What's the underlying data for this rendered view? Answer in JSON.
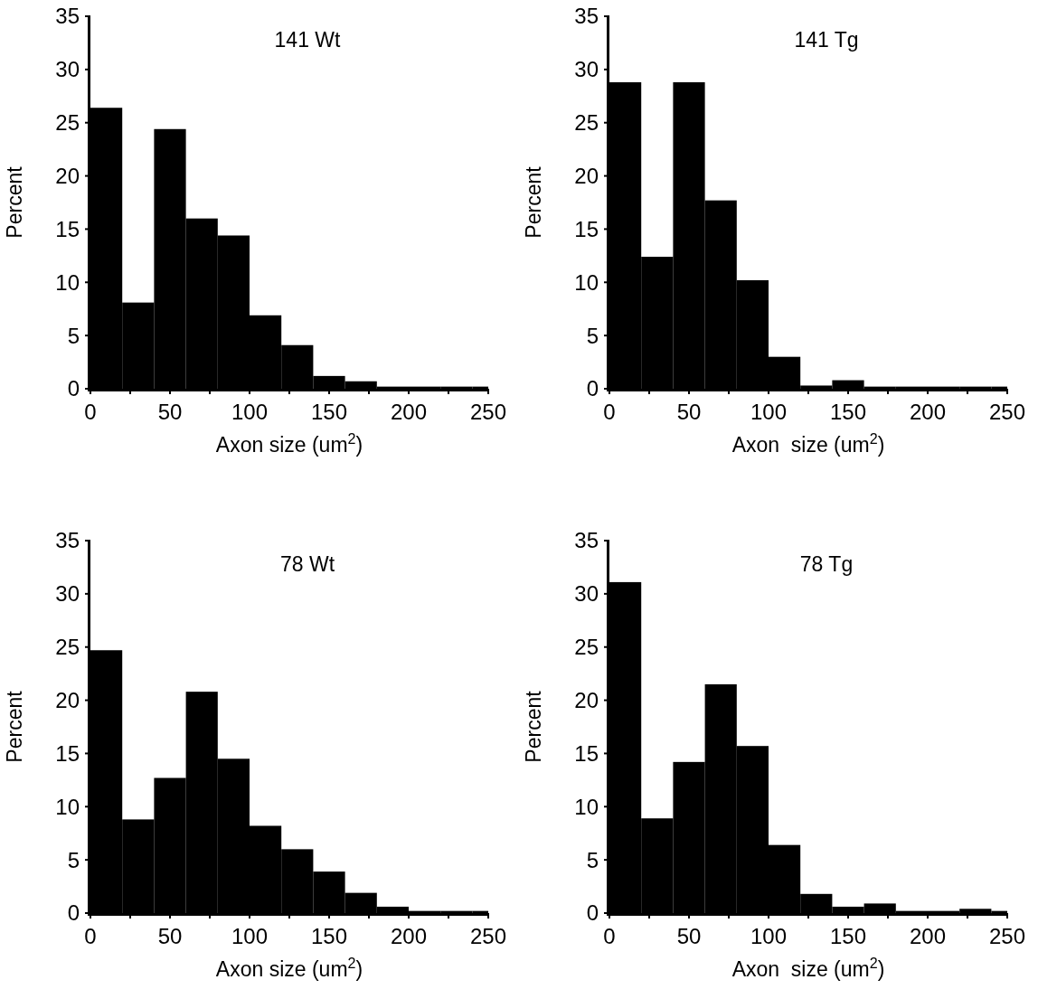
{
  "chart_data": [
    {
      "type": "histogram",
      "title": "141 Wt",
      "xlabel": "Axon size (um$^{2}$)",
      "ylabel": "Percent",
      "color": "#000000",
      "bins": [
        0,
        20,
        40,
        60,
        80,
        100,
        120,
        140,
        160,
        180,
        200,
        220,
        240,
        250
      ],
      "values": [
        26.4,
        8.1,
        24.4,
        16,
        14.4,
        6.9,
        4.1,
        1.2,
        0.7,
        0.2,
        0.2,
        0.2,
        0.2
      ],
      "xlim": [
        0,
        250
      ],
      "ylim": [
        0,
        35
      ],
      "xticks": [
        0,
        {
          "value": 25,
          "label": null
        },
        50,
        {
          "value": 75,
          "label": null
        },
        100,
        {
          "value": 125,
          "label": null
        },
        150,
        {
          "value": 175,
          "label": null
        },
        200,
        {
          "value": 225,
          "label": null
        },
        250
      ],
      "yticks": [
        0,
        5,
        10,
        15,
        20,
        25,
        30,
        35
      ],
      "grid": false
    },
    {
      "type": "histogram",
      "title": "141 Tg",
      "xlabel": "Axon  size (um$^{2}$)",
      "ylabel": "Percent",
      "color": "#000000",
      "bins": [
        0,
        20,
        40,
        60,
        80,
        100,
        120,
        140,
        160,
        180,
        200,
        220,
        240,
        250
      ],
      "values": [
        28.8,
        12.4,
        28.8,
        17.7,
        10.2,
        3.0,
        0.3,
        0.8,
        0.2,
        0.2,
        0.2,
        0.2,
        0.2
      ],
      "xlim": [
        0,
        250
      ],
      "ylim": [
        0,
        35
      ],
      "xticks": [
        0,
        {
          "value": 25,
          "label": null
        },
        50,
        {
          "value": 75,
          "label": null
        },
        100,
        {
          "value": 125,
          "label": null
        },
        150,
        {
          "value": 175,
          "label": null
        },
        200,
        {
          "value": 225,
          "label": null
        },
        250
      ],
      "yticks": [
        0,
        5,
        10,
        15,
        20,
        25,
        30,
        35
      ],
      "grid": false
    },
    {
      "type": "histogram",
      "title": "78 Wt",
      "xlabel": "Axon size (um$^{2}$)",
      "ylabel": "Percent",
      "color": "#000000",
      "bins": [
        0,
        20,
        40,
        60,
        80,
        100,
        120,
        140,
        160,
        180,
        200,
        220,
        240,
        250
      ],
      "values": [
        24.7,
        8.8,
        12.7,
        20.8,
        14.5,
        8.2,
        6.0,
        3.9,
        1.9,
        0.6,
        0.2,
        0.2,
        0.2
      ],
      "xlim": [
        0,
        250
      ],
      "ylim": [
        0,
        35
      ],
      "xticks": [
        0,
        {
          "value": 25,
          "label": null
        },
        50,
        {
          "value": 75,
          "label": null
        },
        100,
        {
          "value": 125,
          "label": null
        },
        150,
        {
          "value": 175,
          "label": null
        },
        200,
        {
          "value": 225,
          "label": null
        },
        250
      ],
      "yticks": [
        0,
        5,
        10,
        15,
        20,
        25,
        30,
        35
      ],
      "grid": false
    },
    {
      "type": "histogram",
      "title": "78 Tg",
      "xlabel": "Axon  size (um$^{2}$)",
      "ylabel": "Percent",
      "color": "#000000",
      "bins": [
        0,
        20,
        40,
        60,
        80,
        100,
        120,
        140,
        160,
        180,
        200,
        220,
        240,
        250
      ],
      "values": [
        31.1,
        8.9,
        14.2,
        21.5,
        15.7,
        6.4,
        1.8,
        0.6,
        0.9,
        0.2,
        0.2,
        0.4,
        0.2
      ],
      "xlim": [
        0,
        250
      ],
      "ylim": [
        0,
        35
      ],
      "xticks": [
        0,
        {
          "value": 25,
          "label": null
        },
        50,
        {
          "value": 75,
          "label": null
        },
        100,
        {
          "value": 125,
          "label": null
        },
        150,
        {
          "value": 175,
          "label": null
        },
        200,
        {
          "value": 225,
          "label": null
        },
        250
      ],
      "yticks": [
        0,
        5,
        10,
        15,
        20,
        25,
        30,
        35
      ],
      "grid": false
    }
  ]
}
